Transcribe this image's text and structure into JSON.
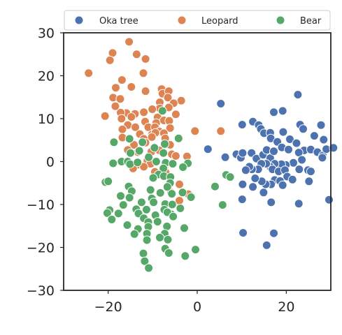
{
  "chart_data": {
    "type": "scatter",
    "title": "",
    "xlabel": "",
    "ylabel": "",
    "xlim": [
      -30,
      30
    ],
    "ylim": [
      -30,
      30
    ],
    "grid": false,
    "legend_position": "top",
    "x_ticks": [
      -20,
      0,
      20
    ],
    "y_ticks": [
      -30,
      -20,
      -10,
      0,
      10,
      20,
      30
    ],
    "x_tick_labels": [
      "−20",
      "0",
      "20"
    ],
    "y_tick_labels": [
      "−30",
      "−20",
      "−10",
      "0",
      "10",
      "20",
      "30"
    ],
    "series": [
      {
        "name": "Oka tree",
        "color": "#4c72b0",
        "points": [
          [
            5.3,
            13.5
          ],
          [
            17.2,
            11.5
          ],
          [
            19.2,
            11.8
          ],
          [
            22.6,
            15.6
          ],
          [
            10.1,
            8.6
          ],
          [
            12.5,
            9.3
          ],
          [
            13.8,
            8.5
          ],
          [
            14.3,
            7.6
          ],
          [
            15.0,
            6.6
          ],
          [
            16.4,
            6.7
          ],
          [
            19.3,
            6.9
          ],
          [
            16.5,
            5.4
          ],
          [
            18.0,
            4.6
          ],
          [
            20.8,
            5.2
          ],
          [
            23.1,
            8.6
          ],
          [
            23.8,
            7.6
          ],
          [
            27.8,
            8.5
          ],
          [
            26.3,
            6.0
          ],
          [
            28.4,
            5.1
          ],
          [
            22.3,
            4.3
          ],
          [
            24.0,
            2.6
          ],
          [
            2.4,
            2.9
          ],
          [
            6.3,
            1.0
          ],
          [
            8.8,
            1.7
          ],
          [
            9.8,
            0.9
          ],
          [
            10.2,
            2.0
          ],
          [
            12.2,
            2.0
          ],
          [
            13.3,
            0.7
          ],
          [
            14.8,
            1.6
          ],
          [
            15.6,
            2.7
          ],
          [
            16.4,
            0.8
          ],
          [
            17.2,
            2.4
          ],
          [
            19.0,
            3.3
          ],
          [
            20.5,
            2.8
          ],
          [
            22.8,
            2.1
          ],
          [
            25.5,
            2.8
          ],
          [
            27.0,
            2.2
          ],
          [
            28.2,
            1.4
          ],
          [
            29.0,
            2.9
          ],
          [
            30.6,
            3.2
          ],
          [
            28.1,
            0.9
          ],
          [
            23.5,
            0.4
          ],
          [
            21.6,
            -0.3
          ],
          [
            19.9,
            -0.8
          ],
          [
            18.9,
            -0.6
          ],
          [
            17.4,
            -0.5
          ],
          [
            16.4,
            -1.2
          ],
          [
            15.5,
            -0.5
          ],
          [
            14.4,
            -0.5
          ],
          [
            13.7,
            -1.8
          ],
          [
            12.3,
            -1.8
          ],
          [
            11.7,
            -1.2
          ],
          [
            10.9,
            -2.0
          ],
          [
            16.9,
            -1.8
          ],
          [
            18.3,
            -2.3
          ],
          [
            19.7,
            -2.0
          ],
          [
            20.2,
            -3.5
          ],
          [
            21.4,
            -4.2
          ],
          [
            22.9,
            -1.8
          ],
          [
            24.9,
            -2.0
          ],
          [
            25.5,
            -2.3
          ],
          [
            25.1,
            -4.6
          ],
          [
            17.4,
            -4.3
          ],
          [
            18.6,
            -4.5
          ],
          [
            19.2,
            -5.5
          ],
          [
            16.6,
            -5.3
          ],
          [
            15.4,
            -5.3
          ],
          [
            14.5,
            -4.6
          ],
          [
            13.0,
            -3.9
          ],
          [
            12.5,
            -5.9
          ],
          [
            10.2,
            -5.3
          ],
          [
            4.1,
            -5.8
          ],
          [
            14.9,
            -7.2
          ],
          [
            10.1,
            -8.8
          ],
          [
            16.6,
            -9.5
          ],
          [
            22.8,
            -9.8
          ],
          [
            29.6,
            -8.9
          ],
          [
            10.3,
            -16.6
          ],
          [
            17.2,
            -16.7
          ],
          [
            15.6,
            -19.5
          ]
        ]
      },
      {
        "name": "Leopard",
        "color": "#dd8452",
        "points": [
          [
            -15.3,
            27.9
          ],
          [
            -13.6,
            25.0
          ],
          [
            -19.0,
            25.3
          ],
          [
            -19.6,
            23.6
          ],
          [
            -11.6,
            23.9
          ],
          [
            -24.4,
            20.6
          ],
          [
            -12.1,
            20.6
          ],
          [
            -16.9,
            19.0
          ],
          [
            -18.3,
            17.2
          ],
          [
            -14.8,
            17.4
          ],
          [
            -11.6,
            16.4
          ],
          [
            -18.9,
            14.9
          ],
          [
            -17.3,
            14.6
          ],
          [
            -8.0,
            16.9
          ],
          [
            -7.8,
            15.8
          ],
          [
            -6.4,
            16.4
          ],
          [
            -6.6,
            14.9
          ],
          [
            -3.6,
            14.2
          ],
          [
            -8.4,
            13.8
          ],
          [
            -5.3,
            13.6
          ],
          [
            -6.4,
            12.6
          ],
          [
            -8.4,
            12.4
          ],
          [
            -10.1,
            12.2
          ],
          [
            -12.0,
            11.5
          ],
          [
            -14.0,
            11.1
          ],
          [
            -15.9,
            11.3
          ],
          [
            -17.2,
            11.4
          ],
          [
            -18.4,
            12.9
          ],
          [
            -14.8,
            10.4
          ],
          [
            -17.0,
            10.0
          ],
          [
            -20.7,
            10.6
          ],
          [
            -4.8,
            11.0
          ],
          [
            -8.9,
            10.3
          ],
          [
            -11.7,
            9.3
          ],
          [
            -9.2,
            9.0
          ],
          [
            -7.5,
            9.6
          ],
          [
            -6.3,
            9.5
          ],
          [
            -15.6,
            8.5
          ],
          [
            -13.9,
            8.0
          ],
          [
            -16.8,
            7.5
          ],
          [
            -11.0,
            8.0
          ],
          [
            -9.5,
            8.0
          ],
          [
            -6.1,
            7.8
          ],
          [
            -8.5,
            7.0
          ],
          [
            -7.5,
            6.6
          ],
          [
            -12.9,
            6.4
          ],
          [
            -10.2,
            6.3
          ],
          [
            -9.4,
            6.7
          ],
          [
            -0.5,
            7.1
          ],
          [
            5.3,
            7.1
          ],
          [
            -10.2,
            5.7
          ],
          [
            -7.2,
            5.4
          ],
          [
            -12.0,
            5.3
          ],
          [
            -16.8,
            5.6
          ],
          [
            -11.6,
            4.4
          ],
          [
            -14.2,
            3.9
          ],
          [
            -6.1,
            3.9
          ],
          [
            -15.6,
            2.7
          ],
          [
            -10.3,
            2.3
          ],
          [
            -8.5,
            2.6
          ],
          [
            -13.3,
            2.2
          ],
          [
            -5.7,
            1.7
          ],
          [
            -4.8,
            1.3
          ],
          [
            -2.3,
            1.2
          ],
          [
            -11.2,
            0.2
          ],
          [
            -10.5,
            -0.5
          ],
          [
            -13.6,
            -0.8
          ],
          [
            -12.0,
            -1.2
          ],
          [
            -14.4,
            -1.6
          ],
          [
            -7.4,
            -1.4
          ],
          [
            -9.5,
            -2.4
          ],
          [
            -7.1,
            -2.5
          ],
          [
            -4.0,
            -5.3
          ],
          [
            -5.9,
            -7.2
          ],
          [
            -4.0,
            -9.1
          ],
          [
            -2.0,
            -7.6
          ]
        ]
      },
      {
        "name": "Bear",
        "color": "#55a868",
        "points": [
          [
            -7.8,
            11.8
          ],
          [
            -4.2,
            5.4
          ],
          [
            -18.7,
            4.5
          ],
          [
            -15.2,
            5.3
          ],
          [
            -12.3,
            4.5
          ],
          [
            -9.6,
            3.2
          ],
          [
            -7.3,
            4.1
          ],
          [
            -15.0,
            2.0
          ],
          [
            -13.0,
            2.5
          ],
          [
            -10.9,
            1.0
          ],
          [
            -7.6,
            2.0
          ],
          [
            -18.9,
            -0.4
          ],
          [
            -17.0,
            0.0
          ],
          [
            -15.6,
            0.0
          ],
          [
            -15.1,
            -0.6
          ],
          [
            -13.4,
            -0.2
          ],
          [
            -9.2,
            0.0
          ],
          [
            -7.1,
            -0.3
          ],
          [
            -5.5,
            -0.5
          ],
          [
            -2.1,
            -0.4
          ],
          [
            -7.6,
            -1.6
          ],
          [
            -3.2,
            -1.3
          ],
          [
            -8.7,
            -3.0
          ],
          [
            -7.5,
            -3.4
          ],
          [
            -6.0,
            -3.6
          ],
          [
            -9.9,
            -3.8
          ],
          [
            -20.6,
            -4.8
          ],
          [
            -20.0,
            -4.6
          ],
          [
            -6.1,
            -5.0
          ],
          [
            4.0,
            -5.8
          ],
          [
            6.5,
            -3.1
          ],
          [
            7.4,
            -3.6
          ],
          [
            -15.4,
            -5.8
          ],
          [
            -6.7,
            -5.9
          ],
          [
            -10.5,
            -6.6
          ],
          [
            -14.7,
            -6.9
          ],
          [
            -8.3,
            -7.3
          ],
          [
            -5.7,
            -7.5
          ],
          [
            -10.2,
            -8.6
          ],
          [
            -17.2,
            -8.0
          ],
          [
            -15.2,
            -8.4
          ],
          [
            -3.3,
            -7.2
          ],
          [
            -1.4,
            -8.3
          ],
          [
            -9.8,
            -9.5
          ],
          [
            -7.2,
            -9.9
          ],
          [
            -5.6,
            -10.0
          ],
          [
            -12.5,
            -9.5
          ],
          [
            -16.6,
            -10.1
          ],
          [
            5.7,
            -10.1
          ],
          [
            -3.8,
            -10.9
          ],
          [
            -7.4,
            -11.2
          ],
          [
            -11.4,
            -11.2
          ],
          [
            -13.7,
            -11.1
          ],
          [
            -5.8,
            -12.3
          ],
          [
            -19.7,
            -11.3
          ],
          [
            -20.2,
            -12.0
          ],
          [
            -17.7,
            -12.1
          ],
          [
            -13.2,
            -12.1
          ],
          [
            -12.0,
            -13.2
          ],
          [
            -9.4,
            -12.5
          ],
          [
            -6.7,
            -11.8
          ],
          [
            -5.4,
            -12.8
          ],
          [
            -19.2,
            -13.5
          ],
          [
            -11.0,
            -14.1
          ],
          [
            -8.9,
            -14.0
          ],
          [
            -15.7,
            -14.8
          ],
          [
            -6.8,
            -15.1
          ],
          [
            -13.3,
            -15.7
          ],
          [
            -11.0,
            -15.2
          ],
          [
            -2.9,
            -15.5
          ],
          [
            -7.3,
            -16.8
          ],
          [
            -11.3,
            -16.8
          ],
          [
            -14.1,
            -16.9
          ],
          [
            -8.4,
            -17.7
          ],
          [
            -11.3,
            -18.3
          ],
          [
            -6.6,
            -18.2
          ],
          [
            -7.2,
            -20.3
          ],
          [
            -0.4,
            -20.5
          ],
          [
            -12.1,
            -21.4
          ],
          [
            -6.4,
            -21.3
          ],
          [
            -2.7,
            -22.0
          ],
          [
            -11.8,
            -23.2
          ],
          [
            -10.9,
            -24.8
          ]
        ]
      }
    ]
  }
}
